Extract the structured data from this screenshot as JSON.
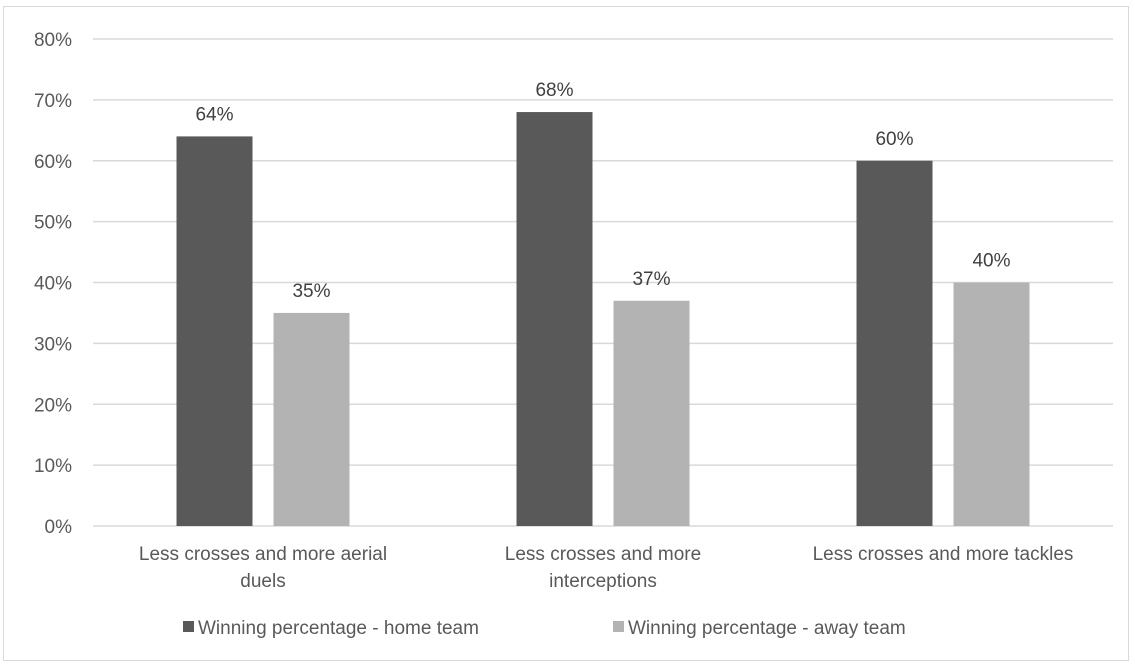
{
  "chart_data": {
    "type": "bar",
    "title": "",
    "xlabel": "",
    "ylabel": "",
    "categories": [
      [
        "Less crosses and more aerial",
        "duels"
      ],
      [
        "Less crosses and more",
        "interceptions"
      ],
      [
        "Less crosses and more tackles"
      ]
    ],
    "series": [
      {
        "name": "Winning percentage - home team",
        "values": [
          64,
          68,
          60
        ],
        "labels": [
          "64%",
          "68%",
          "60%"
        ],
        "color": "#595959"
      },
      {
        "name": "Winning percentage - away team",
        "values": [
          35,
          37,
          40
        ],
        "labels": [
          "35%",
          "37%",
          "40%"
        ],
        "color": "#b3b3b3"
      }
    ],
    "ylim": [
      0,
      80
    ],
    "yticks": [
      0,
      10,
      20,
      30,
      40,
      50,
      60,
      70,
      80
    ],
    "ytick_labels": [
      "0%",
      "10%",
      "20%",
      "30%",
      "40%",
      "50%",
      "60%",
      "70%",
      "80%"
    ],
    "grid": true,
    "gridline_color": "#d9d9d9",
    "legend_position": "bottom"
  }
}
